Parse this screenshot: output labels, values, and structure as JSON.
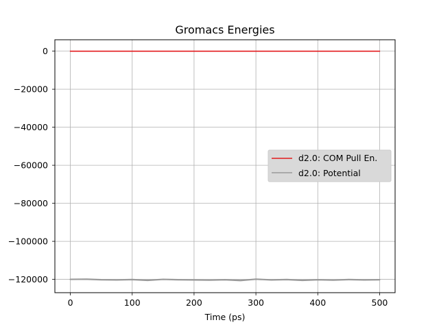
{
  "chart_data": {
    "type": "line",
    "title": "Gromacs Energies",
    "xlabel": "Time (ps)",
    "ylabel": "",
    "xlim": [
      -25,
      525
    ],
    "ylim": [
      -127000,
      6000
    ],
    "xticks": [
      0,
      100,
      200,
      300,
      400,
      500
    ],
    "xtick_labels": [
      "0",
      "100",
      "200",
      "300",
      "400",
      "500"
    ],
    "yticks": [
      0,
      -20000,
      -40000,
      -60000,
      -80000,
      -100000,
      -120000
    ],
    "ytick_labels": [
      "0",
      "−20000",
      "−40000",
      "−60000",
      "−80000",
      "−100000",
      "−120000"
    ],
    "grid": true,
    "legend": {
      "placement": "center-right",
      "entries": [
        "d2.0: COM Pull En.",
        "d2.0: Potential"
      ]
    },
    "series": [
      {
        "name": "d2.0: COM Pull En.",
        "color": "#e31a1c",
        "x": [
          0,
          50,
          100,
          150,
          200,
          250,
          300,
          350,
          400,
          450,
          500
        ],
        "y": [
          0,
          0,
          0,
          0,
          0,
          0,
          0,
          0,
          0,
          0,
          0
        ]
      },
      {
        "name": "d2.0: Potential",
        "color": "#999999",
        "x": [
          0,
          25,
          50,
          75,
          100,
          125,
          150,
          175,
          200,
          225,
          250,
          275,
          300,
          325,
          350,
          375,
          400,
          425,
          450,
          475,
          500
        ],
        "y": [
          -120000,
          -119900,
          -120200,
          -120300,
          -120100,
          -120500,
          -120000,
          -120200,
          -120300,
          -120400,
          -120200,
          -120600,
          -119900,
          -120300,
          -120100,
          -120500,
          -120200,
          -120400,
          -120100,
          -120300,
          -120200
        ]
      }
    ]
  }
}
